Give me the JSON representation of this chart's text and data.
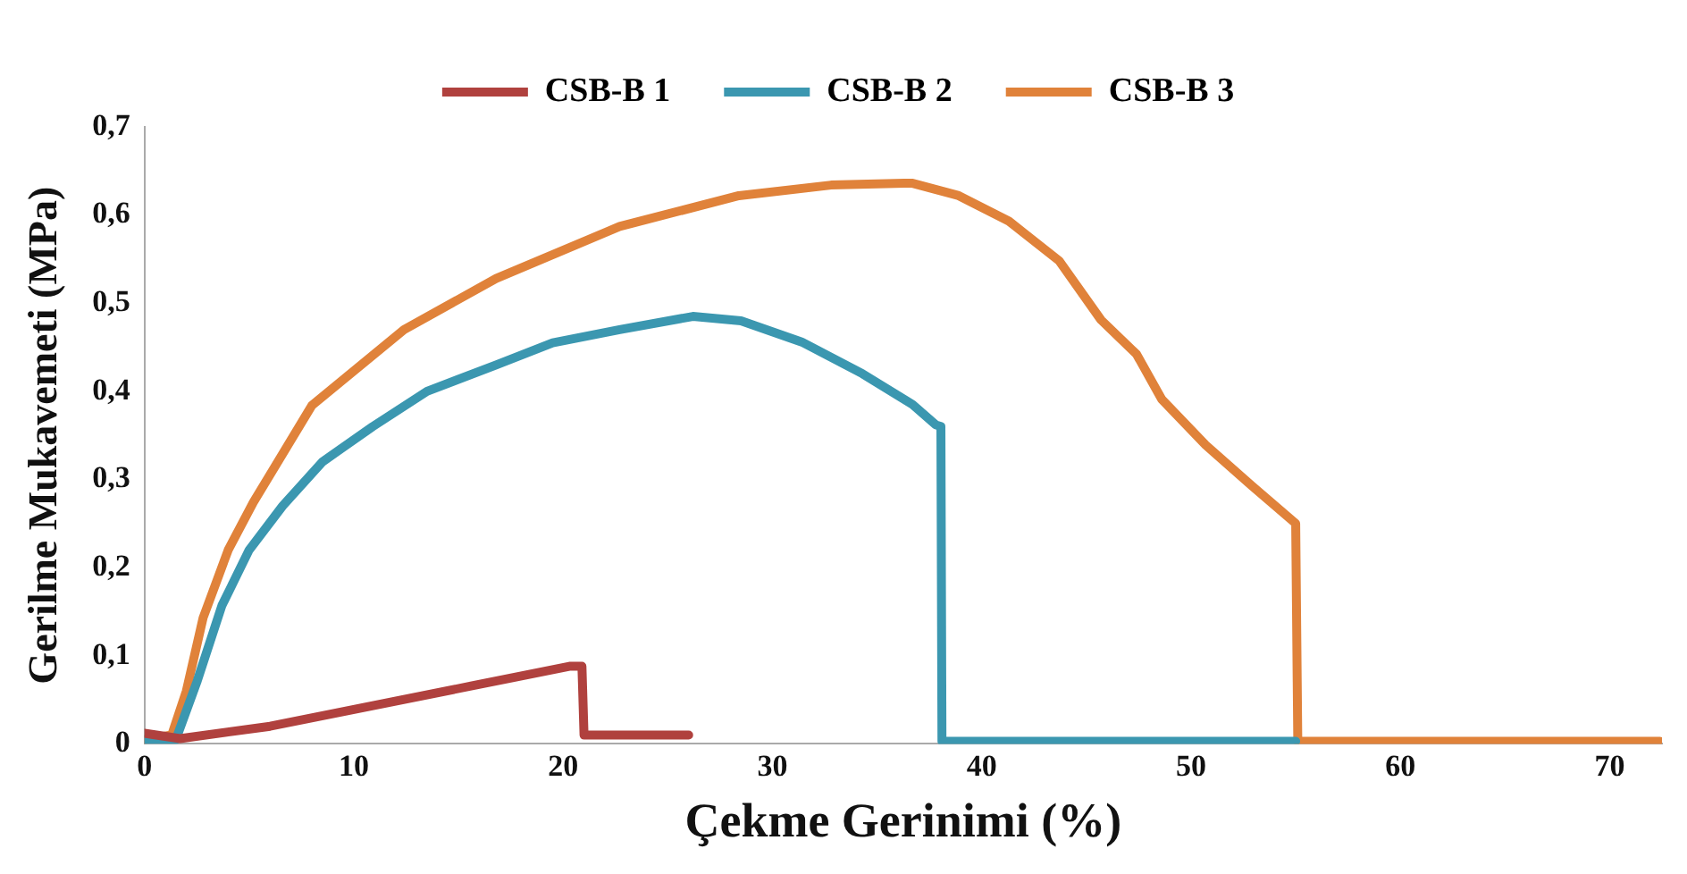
{
  "chart_data": {
    "type": "line",
    "xlabel": "Çekme Gerinimi (%)",
    "ylabel": "Gerilme Mukavemeti (MPa)",
    "xlim": [
      0,
      72.5
    ],
    "xticks": [
      0,
      10,
      20,
      30,
      40,
      50,
      60,
      70
    ],
    "ylim": [
      0,
      0.7
    ],
    "yticks": [
      0,
      {
        "value": 0.1,
        "label": "0,1"
      },
      {
        "value": 0.2,
        "label": "0,2"
      },
      {
        "value": 0.3,
        "label": "0,3"
      },
      {
        "value": 0.4,
        "label": "0,4"
      },
      {
        "value": 0.5,
        "label": "0,5"
      },
      {
        "value": 0.6,
        "label": "0,6"
      },
      {
        "value": 0.7,
        "label": "0,7"
      }
    ],
    "grid": false,
    "legend": "top",
    "marker": "none",
    "line_style": "solid",
    "series": [
      {
        "name": "CSB-B 1",
        "color": "#b0413e",
        "x": [
          0,
          1.7,
          6,
          20.3,
          20.9,
          21.0,
          26.0
        ],
        "values": [
          0.012,
          0.006,
          0.02,
          0.088,
          0.088,
          0.01,
          0.01
        ]
      },
      {
        "name": "CSB-B 2",
        "color": "#3b97b0",
        "x": [
          0,
          1.5,
          2.5,
          3.7,
          5,
          6.6,
          8.5,
          10.9,
          13.5,
          16.8,
          19.5,
          22.7,
          26.2,
          28.5,
          31.4,
          34.3,
          36.7,
          37.8,
          38.05,
          38.1,
          55.0
        ],
        "values": [
          0.005,
          0.005,
          0.07,
          0.157,
          0.22,
          0.27,
          0.32,
          0.36,
          0.4,
          0.43,
          0.455,
          0.47,
          0.485,
          0.48,
          0.456,
          0.42,
          0.385,
          0.362,
          0.36,
          0.003,
          0.003
        ]
      },
      {
        "name": "CSB-B 3",
        "color": "#e0823a",
        "x": [
          0,
          1.3,
          2.0,
          2.8,
          4,
          5.2,
          8.0,
          12.4,
          16.8,
          22.7,
          28.4,
          32.8,
          36.3,
          36.7,
          38.9,
          41.3,
          43.7,
          45.7,
          47.4,
          48.6,
          50.7,
          52.9,
          55.0,
          55.1,
          72.4
        ],
        "values": [
          0.005,
          0.01,
          0.06,
          0.143,
          0.22,
          0.274,
          0.384,
          0.47,
          0.528,
          0.587,
          0.622,
          0.634,
          0.636,
          0.636,
          0.622,
          0.593,
          0.548,
          0.481,
          0.442,
          0.391,
          0.339,
          0.293,
          0.25,
          0.003,
          0.003
        ]
      }
    ]
  }
}
